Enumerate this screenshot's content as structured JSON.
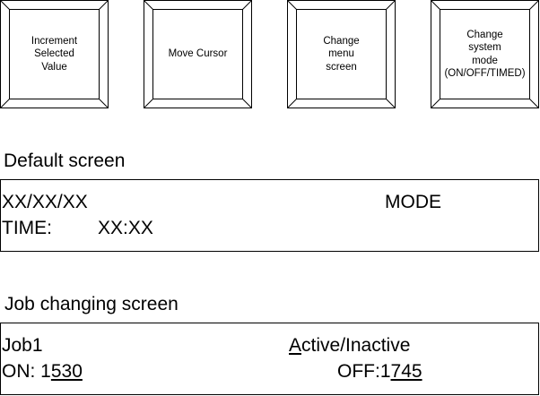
{
  "buttons": [
    {
      "label": "Increment\nSelected\nValue"
    },
    {
      "label": "Move Cursor"
    },
    {
      "label": "Change\nmenu\nscreen"
    },
    {
      "label": "Change\nsystem\nmode\n(ON/OFF/TIMED)"
    }
  ],
  "default_screen": {
    "title": "Default screen",
    "date": "XX/XX/XX",
    "mode": "MODE",
    "time_label": "TIME:",
    "time_value": "XX:XX"
  },
  "job_screen": {
    "title": "Job changing screen",
    "job": "Job1",
    "active_first": "A",
    "active_rest": "ctive/Inactive",
    "on_prefix": "ON: 1",
    "on_underlined": "530",
    "off_prefix": "OFF:1",
    "off_underlined": "745"
  },
  "colors": {
    "stroke": "#000000",
    "background": "#ffffff"
  }
}
